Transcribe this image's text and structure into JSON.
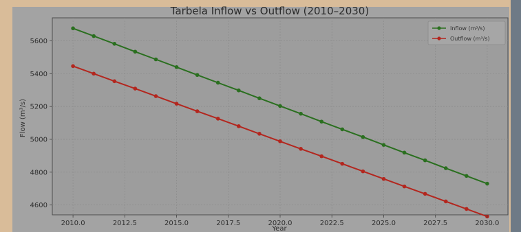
{
  "chart_data": {
    "type": "line",
    "title": "Tarbela Inflow vs Outflow (2010–2030)",
    "xlabel": "Year",
    "ylabel": "Flow (m³/s)",
    "xlim": [
      2009.0,
      2031.0
    ],
    "ylim": [
      4540,
      5740
    ],
    "x_ticks": [
      "2010.0",
      "2012.5",
      "2015.0",
      "2017.5",
      "2020.0",
      "2022.5",
      "2025.0",
      "2027.5",
      "2030.0"
    ],
    "y_ticks": [
      "4600",
      "4800",
      "5000",
      "5200",
      "5400",
      "5600"
    ],
    "grid": true,
    "legend_position": "top-right",
    "x": [
      2010,
      2011,
      2012,
      2013,
      2014,
      2015,
      2016,
      2017,
      2018,
      2019,
      2020,
      2021,
      2022,
      2023,
      2024,
      2025,
      2026,
      2027,
      2028,
      2029,
      2030
    ],
    "series": [
      {
        "name": "Inflow (m³/s)",
        "color": "#2a6f1f",
        "values": [
          5676,
          5629,
          5582,
          5534,
          5487,
          5440,
          5392,
          5345,
          5298,
          5250,
          5203,
          5156,
          5108,
          5061,
          5014,
          4966,
          4919,
          4872,
          4824,
          4777,
          4730
        ]
      },
      {
        "name": "Outflow (m³/s)",
        "color": "#b3261e",
        "values": [
          5446,
          5400,
          5354,
          5309,
          5263,
          5217,
          5171,
          5126,
          5080,
          5034,
          4988,
          4942,
          4897,
          4851,
          4805,
          4759,
          4713,
          4668,
          4622,
          4576,
          4530
        ]
      }
    ]
  }
}
